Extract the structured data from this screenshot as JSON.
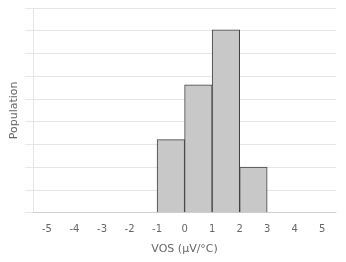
{
  "chart_data": {
    "type": "histogram",
    "bins": [
      -1,
      0,
      1,
      2,
      3
    ],
    "values": [
      4,
      7,
      10,
      2.5
    ],
    "color": "#c8c8c8",
    "xlabel": "VOS (μV/°C)",
    "ylabel": "Population",
    "xlim": [
      -5.5,
      5.5
    ],
    "xticks": [
      -5,
      -4,
      -3,
      -2,
      -1,
      0,
      1,
      2,
      3,
      4,
      5
    ],
    "ylim": [
      0,
      11.2
    ],
    "yticks": [
      0,
      1.2444444444444445,
      2.488888888888889,
      3.7333333333333334,
      4.977777777777778,
      6.222222222222222,
      7.466666666666667,
      8.71111111111111,
      9.955555555555556,
      11.2
    ],
    "grid": true,
    "tick_labels": "x"
  }
}
